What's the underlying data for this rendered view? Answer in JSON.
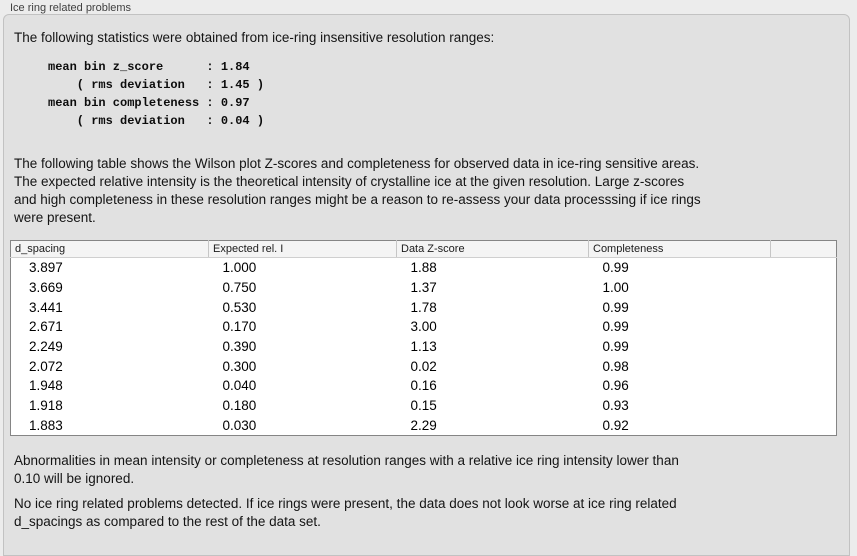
{
  "panel": {
    "title": "Ice ring related problems"
  },
  "intro": "The following statistics were obtained from ice-ring insensitive resolution ranges:",
  "stats_block": "mean bin z_score      : 1.84\n    ( rms deviation   : 1.45 )\nmean bin completeness : 0.97\n    ( rms deviation   : 0.04 )",
  "stats": {
    "mean_bin_z_score": "1.84",
    "z_score_rms_deviation": "1.45",
    "mean_bin_completeness": "0.97",
    "completeness_rms_deviation": "0.04"
  },
  "table_intro": "The following table shows the Wilson plot Z-scores and completeness for observed data in ice-ring sensitive areas.\nThe expected relative intensity is the theoretical intensity of crystalline ice at the given resolution. Large z-scores\nand high completeness in these resolution ranges might be a reason to re-assess your data processsing if ice rings\nwere present.",
  "table": {
    "headers": [
      "d_spacing",
      "Expected rel. I",
      "Data Z-score",
      "Completeness",
      ""
    ],
    "rows": [
      [
        "3.897",
        "1.000",
        "1.88",
        "0.99"
      ],
      [
        "3.669",
        "0.750",
        "1.37",
        "1.00"
      ],
      [
        "3.441",
        "0.530",
        "1.78",
        "0.99"
      ],
      [
        "2.671",
        "0.170",
        "3.00",
        "0.99"
      ],
      [
        "2.249",
        "0.390",
        "1.13",
        "0.99"
      ],
      [
        "2.072",
        "0.300",
        "0.02",
        "0.98"
      ],
      [
        "1.948",
        "0.040",
        "0.16",
        "0.96"
      ],
      [
        "1.918",
        "0.180",
        "0.15",
        "0.93"
      ],
      [
        "1.883",
        "0.030",
        "2.29",
        "0.92"
      ]
    ]
  },
  "notes": {
    "ignore_rule": "Abnormalities in mean intensity or completeness at resolution ranges with a relative ice ring intensity lower than\n0.10 will be ignored.",
    "conclusion": "No ice ring related problems detected. If ice rings were present, the data does not look worse at ice ring related\nd_spacings as compared to the rest of the data set."
  },
  "colors": {
    "page_background": "#ececec",
    "panel_background": "#e1e1e1",
    "panel_border": "#c2c2c2",
    "table_border": "#858585",
    "table_header_background": "#f4f4f4",
    "text": "#141414"
  }
}
